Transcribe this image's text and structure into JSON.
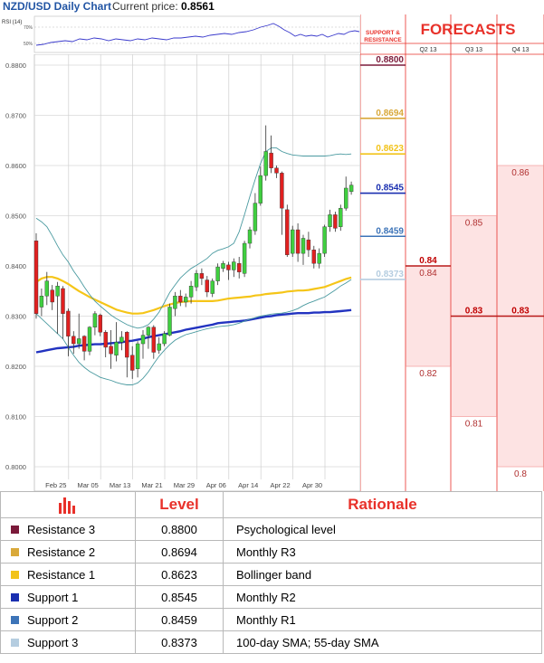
{
  "header": {
    "title": "NZD/USD Daily Chart",
    "price_label": "Current price:",
    "price_value": "0.8561"
  },
  "rsi": {
    "label": "RSI (14)",
    "levels": [
      "70%",
      "50%"
    ]
  },
  "colors": {
    "resistance3": "#7b1a3a",
    "resistance2": "#d9a93a",
    "resistance1": "#f2c31a",
    "support1": "#1a2fb0",
    "support2": "#3d74b8",
    "support3": "#b5cde0",
    "accent": "#e8312a",
    "bollinger": "#4a9aa0",
    "sma100": "#f5c518",
    "sma_long": "#2233c0",
    "candle_up": "#3fcf3f",
    "candle_down": "#e02020"
  },
  "sr_panel": {
    "title": "SUPPORT & RESISTANCE",
    "levels": [
      {
        "label": "0.8800",
        "value": 0.88,
        "key": "resistance3"
      },
      {
        "label": "0.8694",
        "value": 0.8694,
        "key": "resistance2"
      },
      {
        "label": "0.8623",
        "value": 0.8623,
        "key": "resistance1"
      },
      {
        "label": "0.8545",
        "value": 0.8545,
        "key": "support1"
      },
      {
        "label": "0.8459",
        "value": 0.8459,
        "key": "support2"
      },
      {
        "label": "0.8373",
        "value": 0.8373,
        "key": "support3"
      }
    ]
  },
  "forecasts": {
    "title": "FORECASTS",
    "quarters": [
      {
        "label": "Q2 13",
        "values": [
          {
            "v": 0.84,
            "label": "0.84"
          },
          {
            "v": 0.84,
            "label": "0.84"
          },
          {
            "v": 0.82,
            "label": "0.82"
          }
        ],
        "min": 0.82,
        "max": 0.84,
        "median": 0.84,
        "median_label": "0.84"
      },
      {
        "label": "Q3 13",
        "values": [
          {
            "v": 0.85,
            "label": "0.85"
          },
          {
            "v": 0.83,
            "label": "0.83"
          },
          {
            "v": 0.81,
            "label": "0.81"
          }
        ],
        "min": 0.81,
        "max": 0.85,
        "median": 0.83,
        "median_label": "0.83"
      },
      {
        "label": "Q4 13",
        "values": [
          {
            "v": 0.86,
            "label": "0.86"
          },
          {
            "v": 0.83,
            "label": "0.83"
          },
          {
            "v": 0.8,
            "label": "0.8"
          }
        ],
        "min": 0.8,
        "max": 0.86,
        "median": 0.83,
        "median_label": "0.83"
      }
    ]
  },
  "chart_data": {
    "type": "candlestick",
    "title": "NZD/USD Daily Chart",
    "ylim": [
      0.8,
      0.88
    ],
    "y_ticks": [
      "0.8800",
      "0.8700",
      "0.8600",
      "0.8500",
      "0.8400",
      "0.8300",
      "0.8200",
      "0.8100",
      "0.8000"
    ],
    "x_ticks": [
      {
        "label": "Feb 25",
        "index": 2
      },
      {
        "label": "Mar 05",
        "index": 8
      },
      {
        "label": "Mar 13",
        "index": 14
      },
      {
        "label": "Mar 21",
        "index": 20
      },
      {
        "label": "Mar 29",
        "index": 26
      },
      {
        "label": "Apr 06",
        "index": 32
      },
      {
        "label": "Apr 14",
        "index": 38
      },
      {
        "label": "Apr 22",
        "index": 44
      },
      {
        "label": "Apr 30",
        "index": 50
      }
    ],
    "candles": [
      [
        0.845,
        0.8305,
        0.8465,
        0.8295
      ],
      [
        0.8318,
        0.834,
        0.8355,
        0.83
      ],
      [
        0.834,
        0.837,
        0.8388,
        0.8322
      ],
      [
        0.8352,
        0.8328,
        0.8362,
        0.8312
      ],
      [
        0.834,
        0.836,
        0.8368,
        0.8265
      ],
      [
        0.8355,
        0.8305,
        0.836,
        0.8255
      ],
      [
        0.831,
        0.826,
        0.8315,
        0.822
      ],
      [
        0.826,
        0.8245,
        0.827,
        0.8225
      ],
      [
        0.8245,
        0.8255,
        0.8305,
        0.8235
      ],
      [
        0.826,
        0.823,
        0.8262,
        0.8212
      ],
      [
        0.823,
        0.8278,
        0.828,
        0.8222
      ],
      [
        0.8278,
        0.8305,
        0.831,
        0.8262
      ],
      [
        0.8302,
        0.8268,
        0.8305,
        0.826
      ],
      [
        0.8268,
        0.8238,
        0.8272,
        0.8218
      ],
      [
        0.824,
        0.8225,
        0.8272,
        0.8195
      ],
      [
        0.8222,
        0.8248,
        0.8288,
        0.821
      ],
      [
        0.8248,
        0.8258,
        0.827,
        0.8232
      ],
      [
        0.8268,
        0.8218,
        0.827,
        0.8178
      ],
      [
        0.8222,
        0.8192,
        0.824,
        0.8175
      ],
      [
        0.8195,
        0.8245,
        0.825,
        0.8178
      ],
      [
        0.8245,
        0.8262,
        0.8272,
        0.8215
      ],
      [
        0.8262,
        0.8278,
        0.828,
        0.8235
      ],
      [
        0.8278,
        0.8228,
        0.8282,
        0.8215
      ],
      [
        0.8232,
        0.8245,
        0.8258,
        0.8225
      ],
      [
        0.8245,
        0.8265,
        0.827,
        0.824
      ],
      [
        0.8262,
        0.8318,
        0.8325,
        0.826
      ],
      [
        0.8315,
        0.834,
        0.8348,
        0.83
      ],
      [
        0.834,
        0.8328,
        0.8352,
        0.832
      ],
      [
        0.8328,
        0.8338,
        0.8345,
        0.8318
      ],
      [
        0.8338,
        0.836,
        0.837,
        0.8325
      ],
      [
        0.8358,
        0.8385,
        0.8392,
        0.835
      ],
      [
        0.8385,
        0.8375,
        0.8395,
        0.8362
      ],
      [
        0.8372,
        0.8348,
        0.838,
        0.8338
      ],
      [
        0.8345,
        0.837,
        0.8375,
        0.8338
      ],
      [
        0.837,
        0.8398,
        0.8405,
        0.8362
      ],
      [
        0.8395,
        0.8405,
        0.841,
        0.8388
      ],
      [
        0.8402,
        0.8392,
        0.8408,
        0.8372
      ],
      [
        0.8392,
        0.8408,
        0.8415,
        0.8378
      ],
      [
        0.8405,
        0.8388,
        0.8418,
        0.8375
      ],
      [
        0.8385,
        0.8445,
        0.845,
        0.8378
      ],
      [
        0.8445,
        0.8472,
        0.8478,
        0.8435
      ],
      [
        0.847,
        0.8525,
        0.8545,
        0.8462
      ],
      [
        0.8525,
        0.858,
        0.8598,
        0.852
      ],
      [
        0.858,
        0.8628,
        0.868,
        0.857
      ],
      [
        0.8625,
        0.8595,
        0.866,
        0.8585
      ],
      [
        0.8595,
        0.8585,
        0.86,
        0.8575
      ],
      [
        0.8585,
        0.8515,
        0.8588,
        0.8462
      ],
      [
        0.8512,
        0.8422,
        0.8522,
        0.8418
      ],
      [
        0.8425,
        0.8472,
        0.848,
        0.8418
      ],
      [
        0.8472,
        0.8425,
        0.8485,
        0.8408
      ],
      [
        0.8425,
        0.8455,
        0.8462,
        0.8402
      ],
      [
        0.8452,
        0.8432,
        0.8468,
        0.8418
      ],
      [
        0.8432,
        0.8405,
        0.844,
        0.8395
      ],
      [
        0.8405,
        0.8425,
        0.8435,
        0.8395
      ],
      [
        0.8425,
        0.8478,
        0.8482,
        0.8418
      ],
      [
        0.8478,
        0.8502,
        0.8512,
        0.8468
      ],
      [
        0.8502,
        0.8475,
        0.8508,
        0.8468
      ],
      [
        0.8478,
        0.8515,
        0.8522,
        0.847
      ],
      [
        0.8515,
        0.8555,
        0.8578,
        0.851
      ],
      [
        0.8548,
        0.8561,
        0.8568,
        0.8542
      ]
    ],
    "candle_fields": [
      "open",
      "close",
      "high",
      "low"
    ],
    "series": [
      {
        "key": "sma100",
        "values": [
          0.8368,
          0.8375,
          0.8378,
          0.8378,
          0.8375,
          0.837,
          0.8364,
          0.8357,
          0.835,
          0.8344,
          0.8338,
          0.8333,
          0.8328,
          0.8323,
          0.8318,
          0.8313,
          0.831,
          0.8307,
          0.8305,
          0.8305,
          0.8306,
          0.8309,
          0.8312,
          0.8316,
          0.832,
          0.8323,
          0.8326,
          0.8328,
          0.8329,
          0.833,
          0.833,
          0.833,
          0.833,
          0.833,
          0.8331,
          0.8333,
          0.8335,
          0.8336,
          0.8337,
          0.8338,
          0.8339,
          0.8341,
          0.8342,
          0.8344,
          0.8345,
          0.8346,
          0.8347,
          0.8349,
          0.835,
          0.8351,
          0.8351,
          0.8352,
          0.8354,
          0.8356,
          0.8358,
          0.8362,
          0.8366,
          0.837,
          0.8374,
          0.8377
        ]
      },
      {
        "key": "sma_long",
        "values": [
          0.8228,
          0.823,
          0.8232,
          0.8234,
          0.8236,
          0.8237,
          0.8238,
          0.8239,
          0.8241,
          0.8242,
          0.8243,
          0.8244,
          0.8244,
          0.8245,
          0.8246,
          0.8247,
          0.8248,
          0.825,
          0.8251,
          0.8253,
          0.8255,
          0.8258,
          0.826,
          0.8262,
          0.8264,
          0.8266,
          0.8268,
          0.827,
          0.8273,
          0.8275,
          0.8277,
          0.8279,
          0.8281,
          0.8283,
          0.8286,
          0.8287,
          0.8288,
          0.8289,
          0.829,
          0.8291,
          0.8293,
          0.8295,
          0.8297,
          0.8299,
          0.83,
          0.8302,
          0.8303,
          0.8304,
          0.8305,
          0.8306,
          0.8306,
          0.8306,
          0.8307,
          0.8307,
          0.8308,
          0.8308,
          0.8309,
          0.831,
          0.8311,
          0.8312
        ]
      },
      {
        "key": "bollinger_upper",
        "values": [
          0.8495,
          0.8488,
          0.8478,
          0.846,
          0.844,
          0.8422,
          0.8408,
          0.839,
          0.8375,
          0.8358,
          0.8343,
          0.833,
          0.832,
          0.8311,
          0.8302,
          0.8295,
          0.8289,
          0.8283,
          0.8279,
          0.8276,
          0.8278,
          0.8283,
          0.8294,
          0.8308,
          0.8327,
          0.8347,
          0.8362,
          0.8376,
          0.8386,
          0.8395,
          0.8401,
          0.8408,
          0.8415,
          0.8425,
          0.8431,
          0.8434,
          0.8438,
          0.8445,
          0.8468,
          0.8502,
          0.8538,
          0.8572,
          0.8604,
          0.8628,
          0.8635,
          0.8635,
          0.8628,
          0.8624,
          0.8621,
          0.862,
          0.8619,
          0.8619,
          0.8619,
          0.8619,
          0.8619,
          0.862,
          0.8622,
          0.8623,
          0.8622,
          0.8623
        ]
      },
      {
        "key": "bollinger_lower",
        "values": [
          0.8305,
          0.8295,
          0.8285,
          0.8275,
          0.8265,
          0.8255,
          0.8238,
          0.8222,
          0.8208,
          0.8198,
          0.819,
          0.8184,
          0.8178,
          0.8175,
          0.8172,
          0.8168,
          0.8165,
          0.8163,
          0.8163,
          0.8167,
          0.8176,
          0.8189,
          0.8205,
          0.822,
          0.8232,
          0.8243,
          0.8252,
          0.8258,
          0.8263,
          0.8266,
          0.8269,
          0.8272,
          0.8275,
          0.8277,
          0.8279,
          0.828,
          0.8281,
          0.8283,
          0.8286,
          0.829,
          0.8294,
          0.8297,
          0.83,
          0.8302,
          0.8304,
          0.8305,
          0.8306,
          0.8308,
          0.8311,
          0.8315,
          0.8321,
          0.8326,
          0.833,
          0.8334,
          0.8338,
          0.8345,
          0.8352,
          0.836,
          0.8366,
          0.8373
        ]
      }
    ]
  },
  "table": {
    "headers": [
      "Level",
      "Rationale"
    ],
    "rows": [
      {
        "name": "Resistance 3",
        "level": "0.8800",
        "rationale": "Psychological level",
        "key": "resistance3"
      },
      {
        "name": "Resistance 2",
        "level": "0.8694",
        "rationale": "Monthly R3",
        "key": "resistance2"
      },
      {
        "name": "Resistance 1",
        "level": "0.8623",
        "rationale": "Bollinger band",
        "key": "resistance1"
      },
      {
        "name": "Support 1",
        "level": "0.8545",
        "rationale": "Monthly R2",
        "key": "support1"
      },
      {
        "name": "Support 2",
        "level": "0.8459",
        "rationale": "Monthly R1",
        "key": "support2"
      },
      {
        "name": "Support 3",
        "level": "0.8373",
        "rationale": "100-day SMA; 55-day SMA",
        "key": "support3"
      }
    ]
  }
}
